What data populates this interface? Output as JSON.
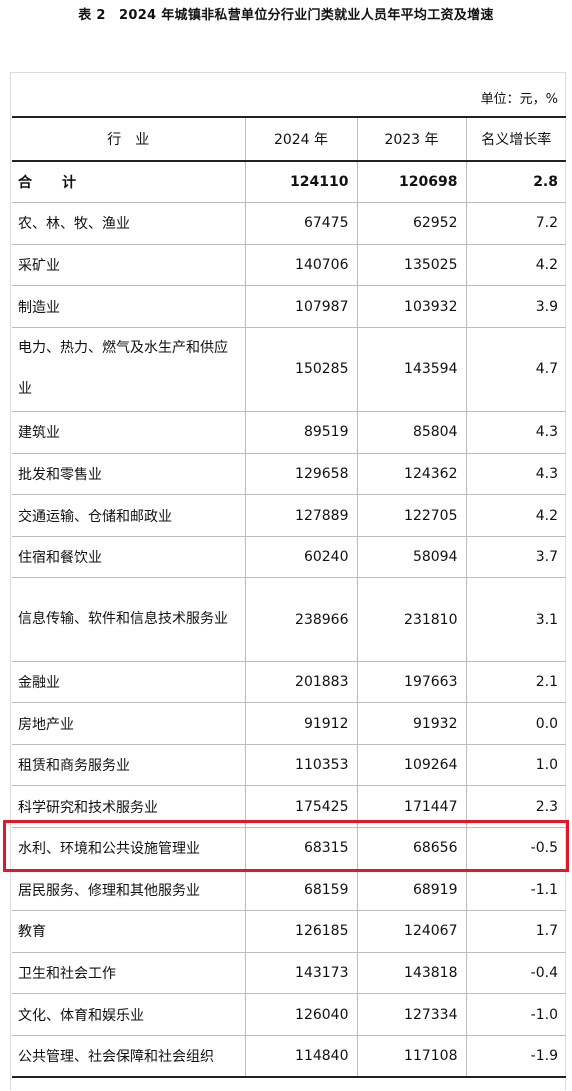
{
  "title": "表 2　2024 年城镇非私营单位分行业门类就业人员年平均工资及增速",
  "unit": "单位：元，%",
  "headers": [
    "行　业",
    "2024 年",
    "2023 年",
    "名义增长率"
  ],
  "rows": [
    {
      "name": "合　计",
      "y2024": "124110",
      "y2023": "120698",
      "growth": "2.8"
    },
    {
      "name": "农、林、牧、渔业",
      "y2024": "67475",
      "y2023": "62952",
      "growth": "7.2"
    },
    {
      "name": "采矿业",
      "y2024": "140706",
      "y2023": "135025",
      "growth": "4.2"
    },
    {
      "name": "制造业",
      "y2024": "107987",
      "y2023": "103932",
      "growth": "3.9"
    },
    {
      "name": "电力、热力、燃气及水生产和供应业",
      "y2024": "150285",
      "y2023": "143594",
      "growth": "4.7"
    },
    {
      "name": "建筑业",
      "y2024": "89519",
      "y2023": "85804",
      "growth": "4.3"
    },
    {
      "name": "批发和零售业",
      "y2024": "129658",
      "y2023": "124362",
      "growth": "4.3"
    },
    {
      "name": "交通运输、仓储和邮政业",
      "y2024": "127889",
      "y2023": "122705",
      "growth": "4.2"
    },
    {
      "name": "住宿和餐饮业",
      "y2024": "60240",
      "y2023": "58094",
      "growth": "3.7"
    },
    {
      "name": "信息传输、软件和信息技术服务业",
      "y2024": "238966",
      "y2023": "231810",
      "growth": "3.1"
    },
    {
      "name": "金融业",
      "y2024": "201883",
      "y2023": "197663",
      "growth": "2.1"
    },
    {
      "name": "房地产业",
      "y2024": "91912",
      "y2023": "91932",
      "growth": "0.0"
    },
    {
      "name": "租赁和商务服务业",
      "y2024": "110353",
      "y2023": "109264",
      "growth": "1.0"
    },
    {
      "name": "科学研究和技术服务业",
      "y2024": "175425",
      "y2023": "171447",
      "growth": "2.3"
    },
    {
      "name": "水利、环境和公共设施管理业",
      "y2024": "68315",
      "y2023": "68656",
      "growth": "-0.5"
    },
    {
      "name": "居民服务、修理和其他服务业",
      "y2024": "68159",
      "y2023": "68919",
      "growth": "-1.1"
    },
    {
      "name": "教育",
      "y2024": "126185",
      "y2023": "124067",
      "growth": "1.7"
    },
    {
      "name": "卫生和社会工作",
      "y2024": "143173",
      "y2023": "143818",
      "growth": "-0.4"
    },
    {
      "name": "文化、体育和娱乐业",
      "y2024": "126040",
      "y2023": "127334",
      "growth": "-1.0"
    },
    {
      "name": "公共管理、社会保障和社会组织",
      "y2024": "114840",
      "y2023": "117108",
      "growth": "-1.9"
    }
  ],
  "highlight": {
    "row": "水利、环境和公共设施管理业",
    "color": "#e0192a"
  }
}
